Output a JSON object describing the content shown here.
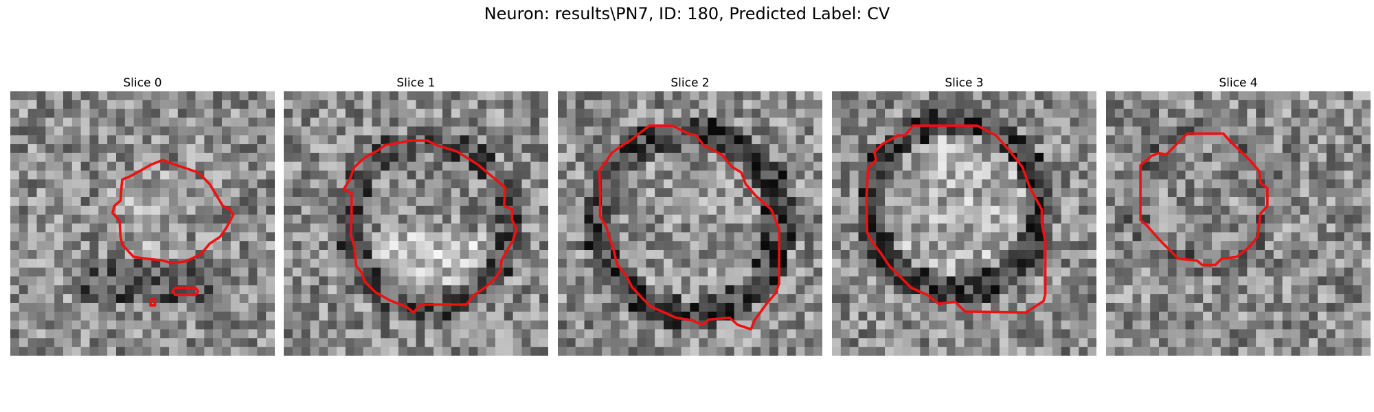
{
  "figure": {
    "title": "Neuron: results\\PN7, ID: 180, Predicted Label: CV"
  },
  "contour_color": "#ee1111",
  "panels": [
    {
      "title": "Slice 0",
      "seed": 11,
      "style": "noisy"
    },
    {
      "title": "Slice 1",
      "seed": 23,
      "style": "blob"
    },
    {
      "title": "Slice 2",
      "seed": 37,
      "style": "ring"
    },
    {
      "title": "Slice 3",
      "seed": 53,
      "style": "ringbright"
    },
    {
      "title": "Slice 4",
      "seed": 71,
      "style": "soft"
    }
  ]
}
